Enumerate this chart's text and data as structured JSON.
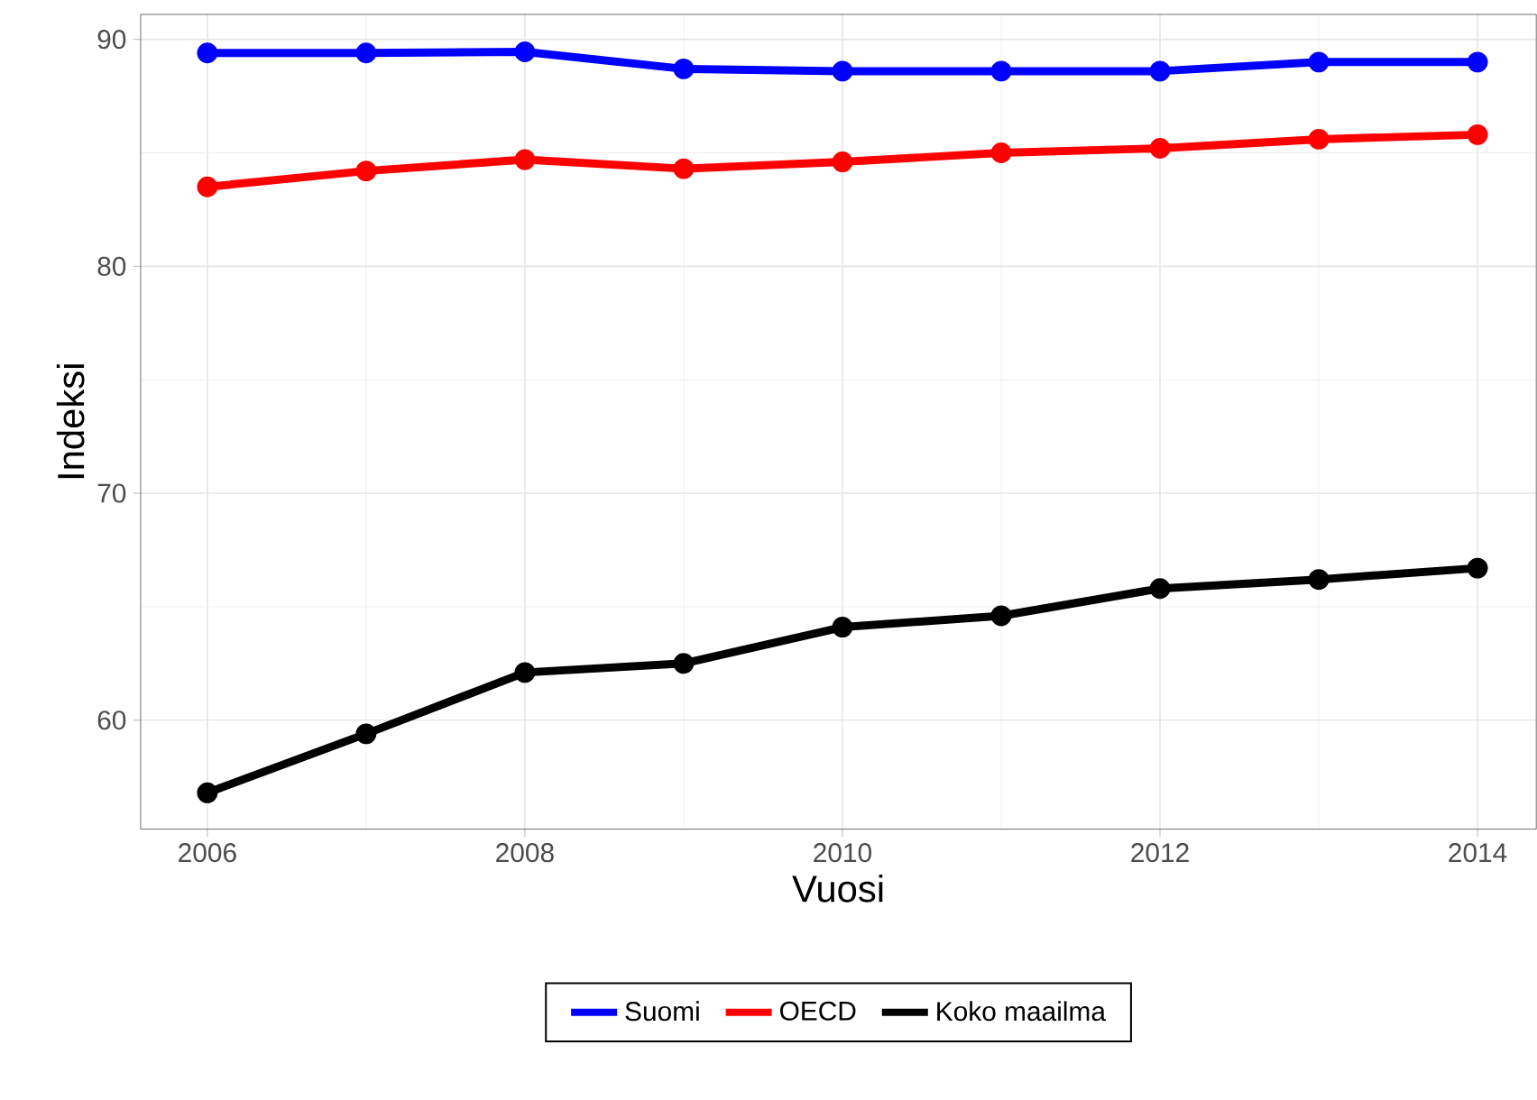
{
  "chart_data": {
    "type": "line",
    "xlabel": "Vuosi",
    "ylabel": "Indeksi",
    "x": [
      2006,
      2007,
      2008,
      2009,
      2010,
      2011,
      2012,
      2013,
      2014
    ],
    "series": [
      {
        "name": "Suomi",
        "color": "#0000ff",
        "values": [
          89.4,
          89.4,
          89.45,
          88.7,
          88.6,
          88.6,
          88.6,
          89.0,
          89.0
        ]
      },
      {
        "name": "OECD",
        "color": "#ff0000",
        "values": [
          83.5,
          84.2,
          84.7,
          84.3,
          84.6,
          85.0,
          85.2,
          85.6,
          85.8
        ]
      },
      {
        "name": "Koko maailma",
        "color": "#000000",
        "values": [
          56.8,
          59.4,
          62.1,
          62.5,
          64.1,
          64.6,
          65.8,
          66.2,
          66.7
        ]
      }
    ],
    "xlim": [
      2005.58,
      2014.37
    ],
    "ylim": [
      55.2,
      91.1
    ],
    "xticks": [
      2006,
      2008,
      2010,
      2012,
      2014
    ],
    "yticks": [
      60,
      70,
      80,
      90
    ],
    "grid": true,
    "legend": "bottom",
    "marker": "circle",
    "line_style": "solid"
  }
}
